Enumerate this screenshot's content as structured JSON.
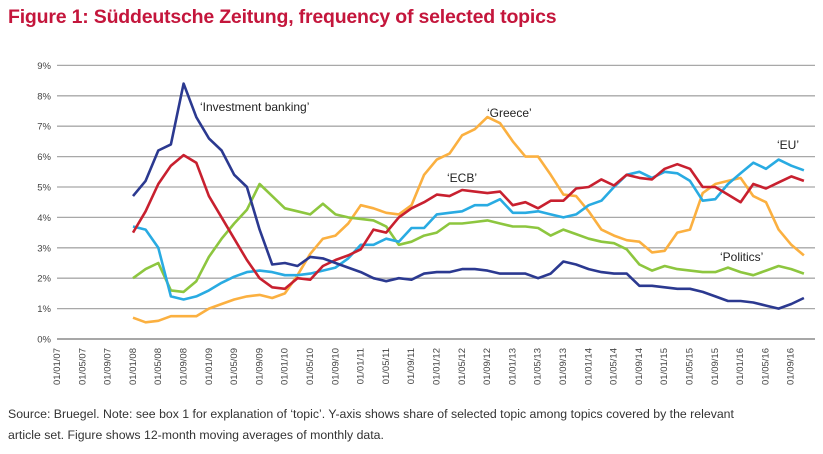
{
  "title": "Figure 1: Süddeutsche Zeitung, frequency of selected topics",
  "source_note_line1": "Source: Bruegel. Note: see box 1 for explanation of ‘topic’. Y-axis shows share of selected topic among topics covered by the relevant",
  "source_note_line2": "article set. Figure shows 12-month moving averages of monthly data.",
  "chart_data": {
    "type": "line",
    "title": "Figure 1: Süddeutsche Zeitung, frequency of selected topics",
    "xlabel": "",
    "ylabel": "",
    "ylim": [
      0,
      9
    ],
    "y_ticks": [
      "0%",
      "1%",
      "2%",
      "3%",
      "4%",
      "5%",
      "6%",
      "7%",
      "8%",
      "9%"
    ],
    "x_tick_labels": [
      "01/01/07",
      "01/05/07",
      "01/09/07",
      "01/01/08",
      "01/05/08",
      "01/09/08",
      "01/01/09",
      "01/05/09",
      "01/09/09",
      "01/01/10",
      "01/05/10",
      "01/09/10",
      "01/01/11",
      "01/05/11",
      "01/09/11",
      "01/01/12",
      "01/05/12",
      "01/09/12",
      "01/01/13",
      "01/05/13",
      "01/09/13",
      "01/01/14",
      "01/05/14",
      "01/09/14",
      "01/01/15",
      "01/05/15",
      "01/09/15",
      "01/01/16",
      "01/05/16",
      "01/09/16"
    ],
    "grid": true,
    "legend": "none (series labelled inline)",
    "x": [
      "2008-01",
      "2008-03",
      "2008-05",
      "2008-07",
      "2008-09",
      "2008-11",
      "2009-01",
      "2009-03",
      "2009-05",
      "2009-07",
      "2009-09",
      "2009-11",
      "2010-01",
      "2010-03",
      "2010-05",
      "2010-07",
      "2010-09",
      "2010-11",
      "2011-01",
      "2011-03",
      "2011-05",
      "2011-07",
      "2011-09",
      "2011-11",
      "2012-01",
      "2012-03",
      "2012-05",
      "2012-07",
      "2012-09",
      "2012-11",
      "2013-01",
      "2013-03",
      "2013-05",
      "2013-07",
      "2013-09",
      "2013-11",
      "2014-01",
      "2014-03",
      "2014-05",
      "2014-07",
      "2014-09",
      "2014-11",
      "2015-01",
      "2015-03",
      "2015-05",
      "2015-07",
      "2015-09",
      "2015-11",
      "2016-01",
      "2016-03",
      "2016-05",
      "2016-07",
      "2016-09",
      "2016-11"
    ],
    "series": [
      {
        "name": "‘Investment banking’",
        "color": "#2b3990",
        "values": [
          4.7,
          5.2,
          6.2,
          6.4,
          8.4,
          7.3,
          6.6,
          6.2,
          5.4,
          5.0,
          3.6,
          2.45,
          2.5,
          2.4,
          2.7,
          2.65,
          2.5,
          2.35,
          2.2,
          2.0,
          1.9,
          2.0,
          1.95,
          2.15,
          2.2,
          2.2,
          2.3,
          2.3,
          2.25,
          2.15,
          2.15,
          2.15,
          2.0,
          2.15,
          2.55,
          2.45,
          2.3,
          2.2,
          2.15,
          2.15,
          1.75,
          1.75,
          1.7,
          1.65,
          1.65,
          1.55,
          1.4,
          1.25,
          1.25,
          1.2,
          1.1,
          1.0,
          1.15,
          1.35
        ]
      },
      {
        "name": "‘ECB’",
        "color": "#c8202f",
        "values": [
          3.5,
          4.2,
          5.1,
          5.7,
          6.05,
          5.8,
          4.7,
          4.0,
          3.3,
          2.6,
          2.0,
          1.7,
          1.65,
          2.0,
          1.95,
          2.4,
          2.6,
          2.75,
          2.95,
          3.6,
          3.5,
          4.0,
          4.3,
          4.5,
          4.75,
          4.7,
          4.9,
          4.85,
          4.8,
          4.85,
          4.4,
          4.5,
          4.3,
          4.55,
          4.55,
          4.95,
          5.0,
          5.25,
          5.05,
          5.4,
          5.3,
          5.25,
          5.6,
          5.75,
          5.6,
          5.0,
          5.0,
          4.75,
          4.5,
          5.1,
          4.95,
          5.15,
          5.35,
          5.2
        ]
      },
      {
        "name": "‘EU’",
        "color": "#29abe2",
        "values": [
          3.7,
          3.6,
          3.0,
          1.4,
          1.3,
          1.4,
          1.6,
          1.85,
          2.05,
          2.2,
          2.25,
          2.2,
          2.1,
          2.1,
          2.15,
          2.25,
          2.35,
          2.65,
          3.1,
          3.1,
          3.3,
          3.2,
          3.65,
          3.65,
          4.1,
          4.15,
          4.2,
          4.4,
          4.4,
          4.6,
          4.15,
          4.15,
          4.2,
          4.1,
          4.0,
          4.1,
          4.4,
          4.55,
          5.0,
          5.4,
          5.5,
          5.3,
          5.5,
          5.45,
          5.2,
          4.55,
          4.6,
          5.1,
          5.45,
          5.8,
          5.6,
          5.9,
          5.7,
          5.55
        ]
      },
      {
        "name": "‘Greece’",
        "color": "#fbb040",
        "values": [
          0.7,
          0.55,
          0.6,
          0.75,
          0.75,
          0.75,
          1.0,
          1.15,
          1.3,
          1.4,
          1.45,
          1.35,
          1.5,
          2.1,
          2.8,
          3.3,
          3.4,
          3.8,
          4.4,
          4.3,
          4.15,
          4.1,
          4.4,
          5.4,
          5.9,
          6.1,
          6.7,
          6.9,
          7.3,
          7.1,
          6.5,
          6.0,
          6.0,
          5.4,
          4.75,
          4.7,
          4.2,
          3.6,
          3.4,
          3.25,
          3.2,
          2.85,
          2.9,
          3.5,
          3.6,
          4.8,
          5.1,
          5.2,
          5.3,
          4.7,
          4.5,
          3.6,
          3.1,
          2.75
        ]
      },
      {
        "name": "‘Politics’",
        "color": "#8dc63f",
        "values": [
          2.0,
          2.3,
          2.5,
          1.6,
          1.55,
          1.9,
          2.7,
          3.3,
          3.8,
          4.25,
          5.1,
          4.7,
          4.3,
          4.2,
          4.1,
          4.45,
          4.1,
          4.0,
          3.95,
          3.9,
          3.7,
          3.1,
          3.2,
          3.4,
          3.5,
          3.8,
          3.8,
          3.85,
          3.9,
          3.8,
          3.7,
          3.7,
          3.65,
          3.4,
          3.6,
          3.45,
          3.3,
          3.2,
          3.15,
          2.95,
          2.45,
          2.25,
          2.4,
          2.3,
          2.25,
          2.2,
          2.2,
          2.35,
          2.2,
          2.1,
          2.25,
          2.4,
          2.3,
          2.15
        ]
      }
    ],
    "annotations": [
      {
        "text": "‘Investment banking’",
        "series": "‘Investment banking’"
      },
      {
        "text": "‘Greece’",
        "series": "‘Greece’"
      },
      {
        "text": "‘ECB’",
        "series": "‘ECB’"
      },
      {
        "text": "‘EU’",
        "series": "‘EU’"
      },
      {
        "text": "‘Politics’",
        "series": "‘Politics’"
      }
    ]
  }
}
